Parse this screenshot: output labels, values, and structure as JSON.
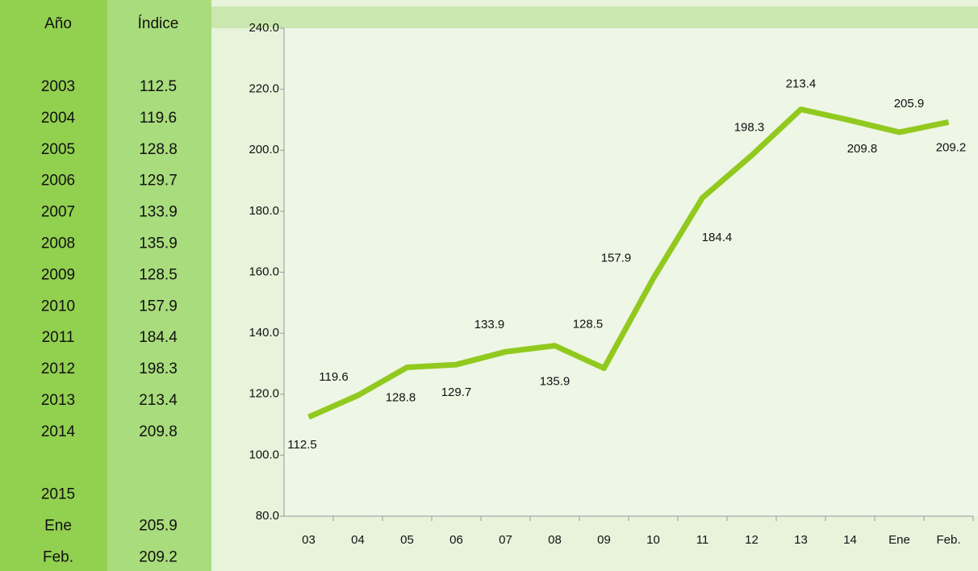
{
  "table": {
    "header": [
      "Año",
      "Índice"
    ],
    "rows": [
      [
        "2003",
        "112.5"
      ],
      [
        "2004",
        "119.6"
      ],
      [
        "2005",
        "128.8"
      ],
      [
        "2006",
        "129.7"
      ],
      [
        "2007",
        "133.9"
      ],
      [
        "2008",
        "135.9"
      ],
      [
        "2009",
        "128.5"
      ],
      [
        "2010",
        "157.9"
      ],
      [
        "2011",
        "184.4"
      ],
      [
        "2012",
        "198.3"
      ],
      [
        "2013",
        "213.4"
      ],
      [
        "2014",
        "209.8"
      ],
      [
        "2015"
      ],
      [
        "Ene",
        "205.9"
      ],
      [
        "Feb.",
        "209.2"
      ]
    ]
  },
  "chart_data": {
    "type": "line",
    "categories": [
      "03",
      "04",
      "05",
      "06",
      "07",
      "08",
      "09",
      "10",
      "11",
      "12",
      "13",
      "14",
      "Ene",
      "Feb."
    ],
    "series": [
      {
        "name": "Índice",
        "color": "#92c91f",
        "values": [
          112.5,
          119.6,
          128.8,
          129.7,
          133.9,
          135.9,
          128.5,
          157.9,
          184.4,
          198.3,
          213.4,
          209.8,
          205.9,
          209.2
        ]
      }
    ],
    "ylim": [
      80,
      240
    ],
    "yticks": [
      {
        "value": 80,
        "label": "80.0"
      },
      {
        "value": 100,
        "label": "100.0"
      },
      {
        "value": 120,
        "label": "120.0"
      },
      {
        "value": 140,
        "label": "140.0"
      },
      {
        "value": 160,
        "label": "160.0"
      },
      {
        "value": 180,
        "label": "180.0"
      },
      {
        "value": 200,
        "label": "200.0"
      },
      {
        "value": 220,
        "label": "220.0"
      },
      {
        "value": 240,
        "label": "240.0"
      }
    ]
  }
}
